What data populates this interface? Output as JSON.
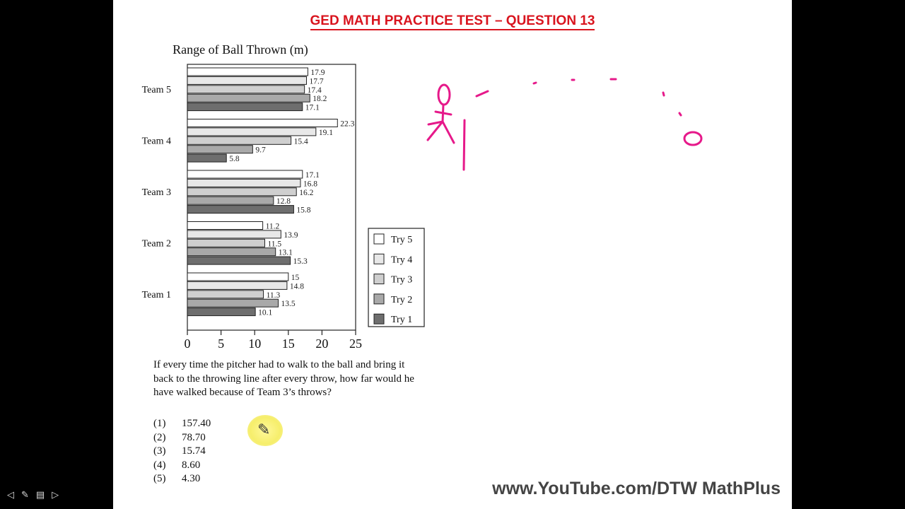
{
  "slide": {
    "title": "GED MATH PRACTICE TEST – QUESTION 13",
    "watermark": "www.YouTube.com/DTW MathPlus"
  },
  "chart_data": {
    "type": "bar",
    "orientation": "horizontal",
    "title": "Range of Ball Thrown (m)",
    "xlabel": "",
    "ylabel": "",
    "xlim": [
      0,
      25
    ],
    "xticks": [
      "0",
      "5",
      "10",
      "15",
      "20",
      "25"
    ],
    "grid": false,
    "legend_position": "right",
    "categories": [
      "Team 1",
      "Team 2",
      "Team 3",
      "Team 4",
      "Team 5"
    ],
    "series": [
      {
        "name": "Try 1",
        "color": "#6e6e6e",
        "values": [
          10.1,
          15.3,
          15.8,
          5.8,
          17.1
        ],
        "labels": [
          "10.1",
          "15.3",
          "15.8",
          "5.8",
          "17.1"
        ]
      },
      {
        "name": "Try 2",
        "color": "#a9a9a9",
        "values": [
          13.5,
          13.1,
          12.8,
          9.7,
          18.2
        ],
        "labels": [
          "13.5",
          "13.1",
          "12.8",
          "9.7",
          "18.2"
        ]
      },
      {
        "name": "Try 3",
        "color": "#cfcfcf",
        "values": [
          11.3,
          11.5,
          16.2,
          15.4,
          17.4
        ],
        "labels": [
          "11.3",
          "11.5",
          "16.2",
          "15.4",
          "17.4"
        ]
      },
      {
        "name": "Try 4",
        "color": "#e8e8e8",
        "values": [
          14.8,
          13.9,
          16.8,
          19.1,
          17.7
        ],
        "labels": [
          "14.8",
          "13.9",
          "16.8",
          "19.1",
          "17.7"
        ]
      },
      {
        "name": "Try 5",
        "color": "#ffffff",
        "values": [
          15,
          11.2,
          17.1,
          22.3,
          17.9
        ],
        "labels": [
          "15",
          "11.2",
          "17.1",
          "22.3",
          "17.9"
        ]
      }
    ],
    "legend_order": [
      "Try 5",
      "Try 4",
      "Try 3",
      "Try 2",
      "Try 1"
    ]
  },
  "question": {
    "text": "If every time the pitcher had to walk to the ball and bring it back to the throwing line after every throw, how far would he have walked because of Team 3’s throws?",
    "choices": [
      {
        "num": "(1)",
        "value": "157.40"
      },
      {
        "num": "(2)",
        "value": "78.70"
      },
      {
        "num": "(3)",
        "value": "15.74"
      },
      {
        "num": "(4)",
        "value": "8.60"
      },
      {
        "num": "(5)",
        "value": "4.30"
      }
    ]
  },
  "colors": {
    "title_red": "#d9141e",
    "ink_magenta": "#e6198a",
    "cursor_highlight": "#f6ee6b"
  },
  "icons": {
    "cursor": "pencil-icon"
  }
}
